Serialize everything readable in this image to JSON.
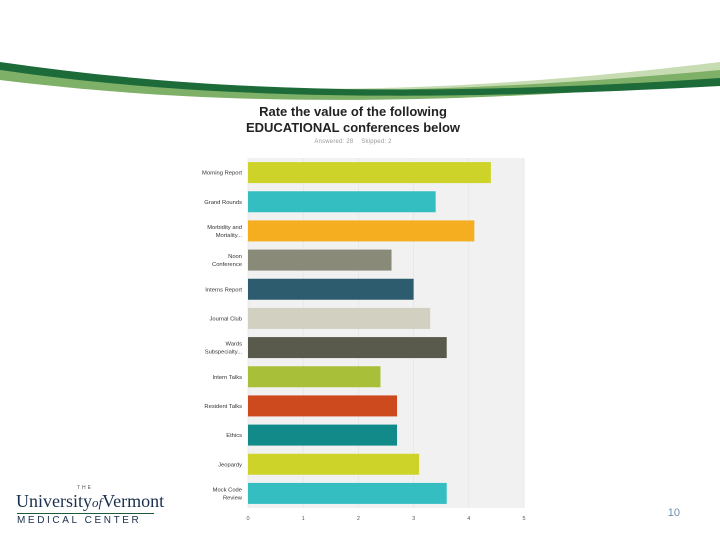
{
  "slide": {
    "page_number": "10"
  },
  "logo": {
    "the": "THE",
    "name_part1": "University",
    "name_part2": "of",
    "name_part3": "Vermont",
    "subtitle": "MEDICAL CENTER"
  },
  "colors": {
    "banner_dark": "#1e6b3a",
    "banner_mid": "#7fb068",
    "banner_light": "#c7dcb2",
    "plot_background": "#f1f1f1"
  },
  "chart_data": {
    "type": "bar",
    "orientation": "horizontal",
    "title_line1": "Rate the value of the following",
    "title_line2": "EDUCATIONAL conferences below",
    "answered": "Answered: 28",
    "skipped": "Skipped: 2",
    "categories": [
      [
        "Morning Report"
      ],
      [
        "Grand Rounds"
      ],
      [
        "Morbidity and",
        "Mortality..."
      ],
      [
        "Noon",
        "Conference"
      ],
      [
        "Interns Report"
      ],
      [
        "Journal Club"
      ],
      [
        "Wards",
        "Subspecialty..."
      ],
      [
        "Intern Talks"
      ],
      [
        "Resident Talks"
      ],
      [
        "Ethics"
      ],
      [
        "Jeopardy"
      ],
      [
        "Mock Code",
        "Review"
      ]
    ],
    "values": [
      4.4,
      3.4,
      4.1,
      2.6,
      3.0,
      3.3,
      3.6,
      2.4,
      2.7,
      2.7,
      3.1,
      3.6
    ],
    "bar_colors": [
      "#ced32a",
      "#35bec1",
      "#f4ae20",
      "#8a8a78",
      "#2d5c6e",
      "#d2d0c0",
      "#5a5a4c",
      "#a8bf39",
      "#cd4a1f",
      "#138a8a",
      "#ced32a",
      "#35bec1"
    ],
    "xlim": [
      0,
      5
    ],
    "xticks": [
      "0",
      "1",
      "2",
      "3",
      "4",
      "5"
    ],
    "grid": true
  }
}
